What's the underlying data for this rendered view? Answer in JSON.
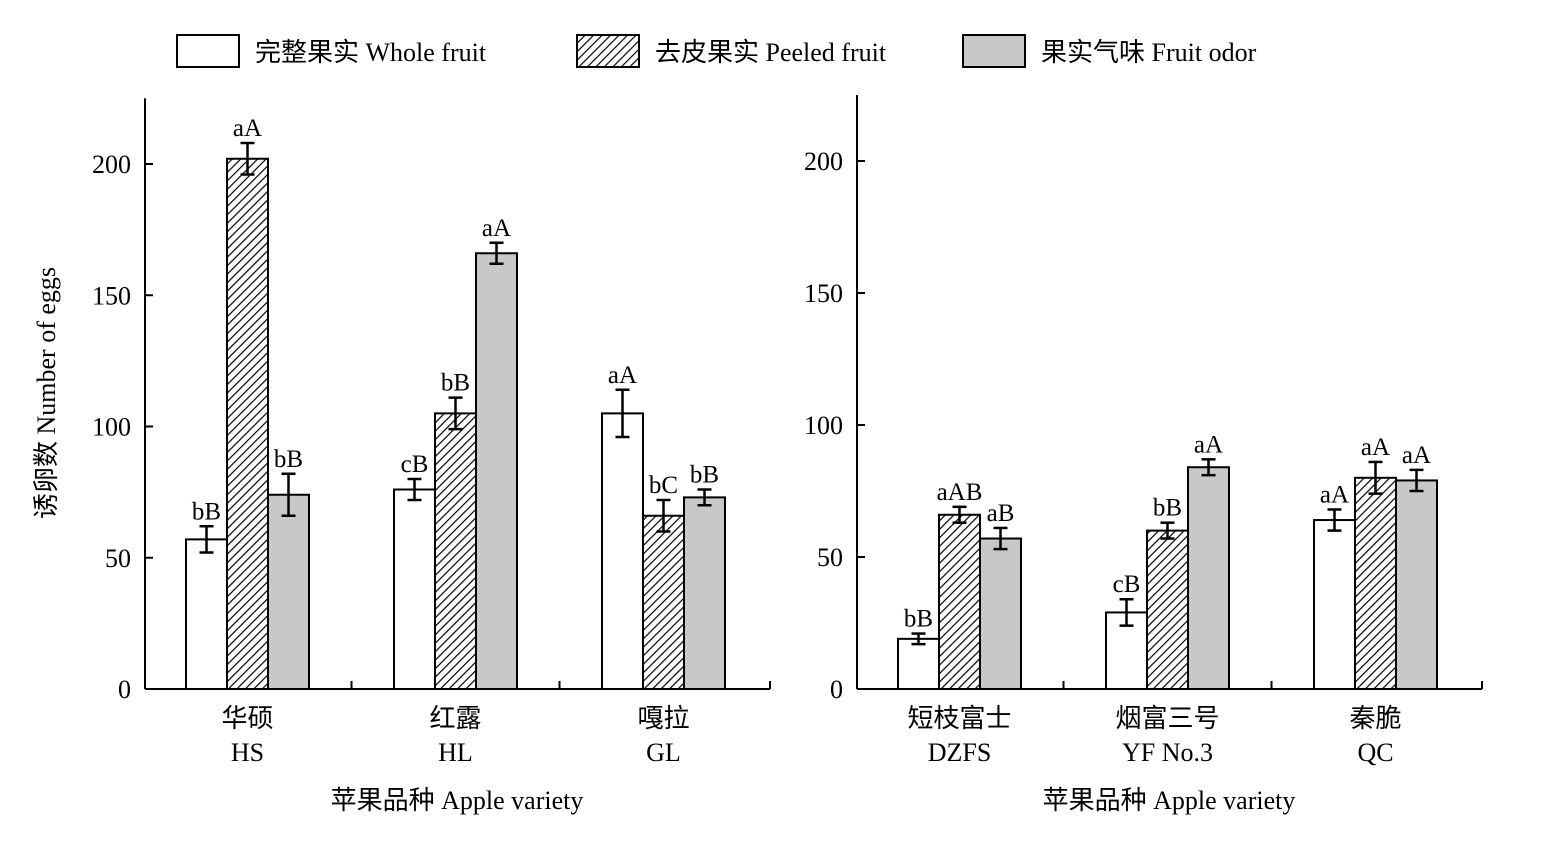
{
  "chart_data": {
    "type": "bar",
    "ylabel": "诱卵数 Number of eggs",
    "legend": {
      "placement": "top",
      "entries": [
        {
          "label": "完整果实 Whole fruit",
          "fill": "#ffffff",
          "pattern": "none"
        },
        {
          "label": "去皮果实 Peeled fruit",
          "fill": "#ffffff",
          "pattern": "hatch"
        },
        {
          "label": "果实气味 Fruit odor",
          "fill": "#c8c8c8",
          "pattern": "none"
        }
      ]
    },
    "panels": [
      {
        "xlabel": "苹果品种 Apple variety",
        "ylim": [
          0,
          225
        ],
        "yticks": [
          0,
          50,
          100,
          150,
          200
        ],
        "categories": [
          {
            "cn": "华硕",
            "en": "HS"
          },
          {
            "cn": "红露",
            "en": "HL"
          },
          {
            "cn": "嘎拉",
            "en": "GL"
          }
        ],
        "series": [
          {
            "values": [
              57,
              76,
              105
            ],
            "errors": [
              5,
              4,
              9
            ],
            "labels": [
              "bB",
              "cB",
              "aA"
            ]
          },
          {
            "values": [
              202,
              105,
              66
            ],
            "errors": [
              6,
              6,
              6
            ],
            "labels": [
              "aA",
              "bB",
              "bC"
            ]
          },
          {
            "values": [
              74,
              166,
              73
            ],
            "errors": [
              8,
              4,
              3
            ],
            "labels": [
              "bB",
              "aA",
              "bB"
            ]
          }
        ]
      },
      {
        "xlabel": "苹果品种 Apple variety",
        "ylim": [
          0,
          225
        ],
        "yticks": [
          0,
          50,
          100,
          150,
          200
        ],
        "categories": [
          {
            "cn": "短枝富士",
            "en": "DZFS"
          },
          {
            "cn": "烟富三号",
            "en": "YF No.3"
          },
          {
            "cn": "秦脆",
            "en": "QC"
          }
        ],
        "series": [
          {
            "values": [
              19,
              29,
              64
            ],
            "errors": [
              2,
              5,
              4
            ],
            "labels": [
              "bB",
              "cB",
              "aA"
            ]
          },
          {
            "values": [
              66,
              60,
              80
            ],
            "errors": [
              3,
              3,
              6
            ],
            "labels": [
              "aAB",
              "bB",
              "aA"
            ]
          },
          {
            "values": [
              57,
              84,
              79
            ],
            "errors": [
              4,
              3,
              4
            ],
            "labels": [
              "aB",
              "aA",
              "aA"
            ]
          }
        ]
      }
    ]
  }
}
